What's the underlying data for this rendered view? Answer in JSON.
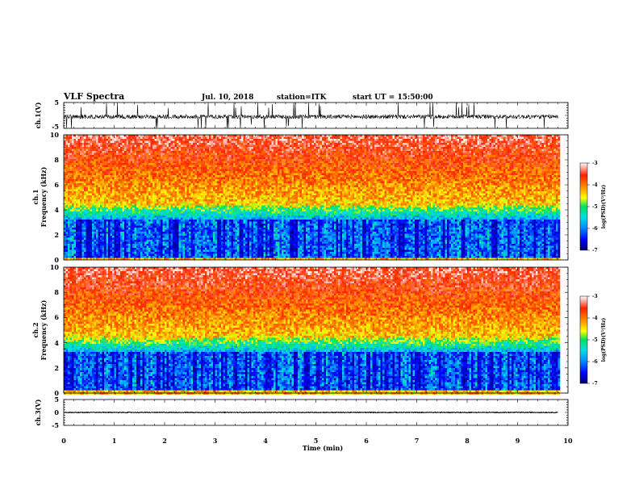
{
  "header": {
    "title": "VLF Spectra",
    "date": "Jul. 10, 2018",
    "station": "station=ITK",
    "start_ut": "start UT = 15:50:00"
  },
  "chart_data": [
    {
      "type": "line",
      "name": "ch1-waveform",
      "ylabel": "ch.1(V)",
      "xlim": [
        0,
        10
      ],
      "ylim": [
        -5,
        5
      ],
      "yticks": [
        "5",
        "-5"
      ],
      "baseline": -0.5,
      "spike_density": "high",
      "data_end": 9.8
    },
    {
      "type": "heatmap",
      "name": "ch1-spectrogram",
      "ylabel": "ch.1 Frequency (kHz)",
      "ylabel_lines": [
        "ch.1",
        "Frequency (kHz)"
      ],
      "xlim": [
        0,
        10
      ],
      "ylim": [
        0,
        10
      ],
      "yticks": [
        "10",
        "8",
        "6",
        "4",
        "2",
        "0"
      ],
      "data_end": 9.8,
      "colorbar": {
        "label": "log(PSD)(V²/Hz)",
        "range": [
          -7,
          -3
        ],
        "ticks": [
          "-3",
          "-4",
          "-5",
          "-6",
          "-7"
        ],
        "colors": [
          "#000070",
          "#0000ff",
          "#0090ff",
          "#00e0e0",
          "#00e060",
          "#ffff00",
          "#ff9000",
          "#ff2000",
          "#ffffff"
        ]
      }
    },
    {
      "type": "heatmap",
      "name": "ch2-spectrogram",
      "ylabel": "ch.2 Frequency (kHz)",
      "ylabel_lines": [
        "ch.2",
        "Frequency (kHz)"
      ],
      "xlim": [
        0,
        10
      ],
      "ylim": [
        0,
        10
      ],
      "yticks": [
        "10",
        "8",
        "6",
        "4",
        "2",
        "0"
      ],
      "data_end": 9.8,
      "colorbar": {
        "label": "log(PSD)(V²/Hz)",
        "range": [
          -7,
          -3
        ],
        "ticks": [
          "-3",
          "-4",
          "-5",
          "-6",
          "-7"
        ],
        "colors": [
          "#000070",
          "#0000ff",
          "#0090ff",
          "#00e0e0",
          "#00e060",
          "#ffff00",
          "#ff9000",
          "#ff2000",
          "#ffffff"
        ]
      }
    },
    {
      "type": "line",
      "name": "ch3-waveform",
      "ylabel": "ch.3(V)",
      "xlim": [
        0,
        10
      ],
      "ylim": [
        -5,
        5
      ],
      "yticks": [
        "5",
        "0",
        "-5"
      ],
      "baseline": 0,
      "spike_density": "none",
      "data_end": 9.8
    }
  ],
  "xaxis": {
    "label": "Time (min)",
    "ticks": [
      "0",
      "1",
      "2",
      "3",
      "4",
      "5",
      "6",
      "7",
      "8",
      "9",
      "10"
    ]
  }
}
